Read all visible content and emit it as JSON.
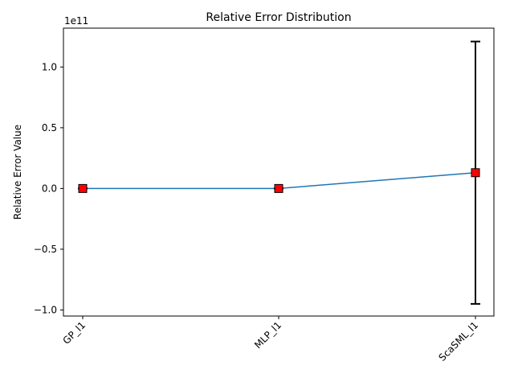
{
  "chart_data": {
    "type": "line",
    "title": "Relative Error Distribution",
    "xlabel": "",
    "ylabel": "Relative Error Value",
    "offset_label": "1e11",
    "categories": [
      "GP_l1",
      "MLP_l1",
      "ScaSML_l1"
    ],
    "series": [
      {
        "values": [
          0.0,
          0.0,
          13000000000.0
        ],
        "error_low": [
          0.0,
          0.0,
          -95000000000.0
        ],
        "error_high": [
          0.0,
          0.0,
          121000000000.0
        ]
      }
    ],
    "ylim": [
      -105000000000.0,
      132000000000.0
    ],
    "y_ticks": [
      -100000000000.0,
      -50000000000.0,
      0.0,
      50000000000.0,
      100000000000.0
    ],
    "y_tick_labels": [
      "−1.0",
      "−0.5",
      "0.0",
      "0.5",
      "1.0"
    ],
    "grid": false,
    "colors": {
      "line": "#1f77b4",
      "marker_fill": "#ff0000",
      "marker_edge": "#000000",
      "error_bar": "#000000"
    }
  }
}
